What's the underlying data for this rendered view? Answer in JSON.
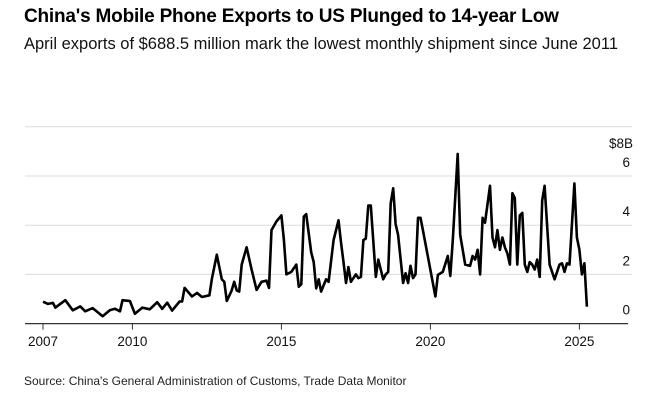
{
  "chart_data": {
    "type": "line",
    "title": "China's Mobile Phone Exports to US Plunged to 14-year Low",
    "subtitle": "April exports of $688.5 million mark the lowest monthly shipment since June 2011",
    "source": "Source: China's General Administration of Customs, Trade Data Monitor",
    "y_unit_label": "$8B",
    "ylim": [
      0,
      8
    ],
    "y_ticks": [
      0,
      2,
      4,
      6
    ],
    "y_tick_labels": [
      "0",
      "2",
      "4",
      "6"
    ],
    "x_ticks": [
      "2007",
      "2010",
      "2015",
      "2020",
      "2025"
    ],
    "xlim": [
      "2007-01",
      "2026-03"
    ],
    "grid": true,
    "line_color": "#000000",
    "series": [
      {
        "points": [
          [
            "2007-01",
            0.89
          ],
          [
            "2007-03",
            0.8
          ],
          [
            "2007-05",
            0.84
          ],
          [
            "2007-06",
            0.65
          ],
          [
            "2007-10",
            0.95
          ],
          [
            "2008-01",
            0.54
          ],
          [
            "2008-04",
            0.7
          ],
          [
            "2008-06",
            0.5
          ],
          [
            "2008-09",
            0.63
          ],
          [
            "2009-01",
            0.3
          ],
          [
            "2009-04",
            0.55
          ],
          [
            "2009-06",
            0.6
          ],
          [
            "2009-08",
            0.5
          ],
          [
            "2009-09",
            0.95
          ],
          [
            "2009-12",
            0.92
          ],
          [
            "2010-02",
            0.4
          ],
          [
            "2010-05",
            0.65
          ],
          [
            "2010-08",
            0.58
          ],
          [
            "2010-11",
            0.87
          ],
          [
            "2011-01",
            0.6
          ],
          [
            "2011-03",
            0.85
          ],
          [
            "2011-05",
            0.53
          ],
          [
            "2011-08",
            0.9
          ],
          [
            "2011-09",
            0.9
          ],
          [
            "2011-10",
            1.45
          ],
          [
            "2012-01",
            1.1
          ],
          [
            "2012-03",
            1.25
          ],
          [
            "2012-05",
            1.08
          ],
          [
            "2012-08",
            1.15
          ],
          [
            "2012-09",
            1.82
          ],
          [
            "2012-11",
            2.8
          ],
          [
            "2013-01",
            1.8
          ],
          [
            "2013-02",
            1.7
          ],
          [
            "2013-03",
            0.92
          ],
          [
            "2013-05",
            1.35
          ],
          [
            "2013-06",
            1.7
          ],
          [
            "2013-07",
            1.35
          ],
          [
            "2013-08",
            1.3
          ],
          [
            "2013-09",
            2.4
          ],
          [
            "2013-11",
            3.1
          ],
          [
            "2014-01",
            2.2
          ],
          [
            "2014-03",
            1.37
          ],
          [
            "2014-05",
            1.7
          ],
          [
            "2014-07",
            1.75
          ],
          [
            "2014-08",
            1.45
          ],
          [
            "2014-09",
            3.8
          ],
          [
            "2014-11",
            4.15
          ],
          [
            "2015-01",
            4.4
          ],
          [
            "2015-02",
            3.4
          ],
          [
            "2015-03",
            2.0
          ],
          [
            "2015-05",
            2.1
          ],
          [
            "2015-07",
            2.4
          ],
          [
            "2015-08",
            1.5
          ],
          [
            "2015-09",
            1.6
          ],
          [
            "2015-10",
            4.35
          ],
          [
            "2015-11",
            4.45
          ],
          [
            "2016-01",
            2.9
          ],
          [
            "2016-02",
            2.5
          ],
          [
            "2016-03",
            1.43
          ],
          [
            "2016-04",
            1.8
          ],
          [
            "2016-05",
            1.3
          ],
          [
            "2016-07",
            1.8
          ],
          [
            "2016-08",
            1.7
          ],
          [
            "2016-10",
            3.4
          ],
          [
            "2016-12",
            4.2
          ],
          [
            "2017-01",
            3.3
          ],
          [
            "2017-02",
            2.5
          ],
          [
            "2017-03",
            1.65
          ],
          [
            "2017-04",
            2.3
          ],
          [
            "2017-05",
            1.7
          ],
          [
            "2017-07",
            2.0
          ],
          [
            "2017-08",
            1.85
          ],
          [
            "2017-09",
            1.9
          ],
          [
            "2017-10",
            3.4
          ],
          [
            "2017-11",
            3.45
          ],
          [
            "2017-12",
            4.8
          ],
          [
            "2018-01",
            4.8
          ],
          [
            "2018-03",
            1.9
          ],
          [
            "2018-04",
            2.6
          ],
          [
            "2018-06",
            1.8
          ],
          [
            "2018-07",
            2.0
          ],
          [
            "2018-08",
            2.1
          ],
          [
            "2018-09",
            4.9
          ],
          [
            "2018-10",
            5.5
          ],
          [
            "2018-11",
            4.05
          ],
          [
            "2018-12",
            3.6
          ],
          [
            "2019-02",
            1.65
          ],
          [
            "2019-03",
            2.05
          ],
          [
            "2019-04",
            1.65
          ],
          [
            "2019-05",
            2.35
          ],
          [
            "2019-06",
            1.85
          ],
          [
            "2019-07",
            2.0
          ],
          [
            "2019-08",
            4.3
          ],
          [
            "2019-09",
            4.3
          ],
          [
            "2019-10",
            3.8
          ],
          [
            "2020-03",
            1.1
          ],
          [
            "2020-04",
            1.98
          ],
          [
            "2020-06",
            2.1
          ],
          [
            "2020-08",
            2.75
          ],
          [
            "2020-09",
            1.94
          ],
          [
            "2020-10",
            3.4
          ],
          [
            "2020-12",
            6.9
          ],
          [
            "2021-01",
            3.6
          ],
          [
            "2021-02",
            3.0
          ],
          [
            "2021-03",
            2.4
          ],
          [
            "2021-05",
            2.35
          ],
          [
            "2021-06",
            2.75
          ],
          [
            "2021-07",
            2.6
          ],
          [
            "2021-08",
            3.0
          ],
          [
            "2021-09",
            2.0
          ],
          [
            "2021-10",
            4.3
          ],
          [
            "2021-11",
            4.1
          ],
          [
            "2022-01",
            5.6
          ],
          [
            "2022-02",
            3.5
          ],
          [
            "2022-03",
            3.1
          ],
          [
            "2022-04",
            3.8
          ],
          [
            "2022-05",
            3.0
          ],
          [
            "2022-06",
            3.5
          ],
          [
            "2022-07",
            3.1
          ],
          [
            "2022-08",
            2.85
          ],
          [
            "2022-09",
            2.4
          ],
          [
            "2022-10",
            5.3
          ],
          [
            "2022-11",
            5.1
          ],
          [
            "2022-12",
            2.4
          ],
          [
            "2023-01",
            4.4
          ],
          [
            "2023-02",
            4.5
          ],
          [
            "2023-03",
            2.4
          ],
          [
            "2023-04",
            2.1
          ],
          [
            "2023-05",
            2.5
          ],
          [
            "2023-06",
            2.4
          ],
          [
            "2023-07",
            2.2
          ],
          [
            "2023-08",
            2.6
          ],
          [
            "2023-09",
            1.9
          ],
          [
            "2023-10",
            5.0
          ],
          [
            "2023-11",
            5.6
          ],
          [
            "2024-01",
            2.4
          ],
          [
            "2024-03",
            1.8
          ],
          [
            "2024-05",
            2.4
          ],
          [
            "2024-06",
            2.45
          ],
          [
            "2024-07",
            2.1
          ],
          [
            "2024-08",
            2.45
          ],
          [
            "2024-09",
            2.4
          ],
          [
            "2024-11",
            5.7
          ],
          [
            "2024-12",
            3.5
          ],
          [
            "2025-01",
            3.0
          ],
          [
            "2025-02",
            2.0
          ],
          [
            "2025-03",
            2.45
          ],
          [
            "2025-04",
            0.6885
          ]
        ]
      }
    ]
  }
}
